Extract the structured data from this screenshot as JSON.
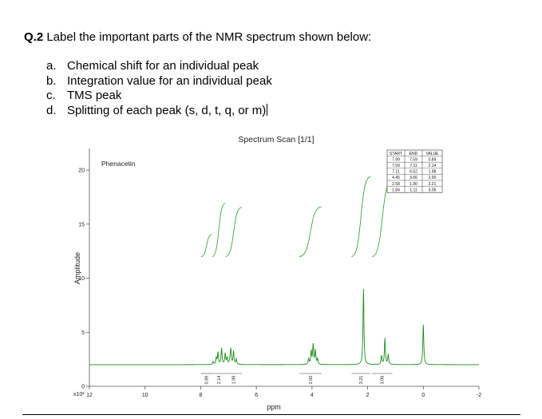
{
  "question": {
    "number": "Q.2",
    "prompt": "Label the important parts of the NMR spectrum shown below:",
    "items": [
      {
        "letter": "a.",
        "text": "Chemical shift for an individual peak"
      },
      {
        "letter": "b.",
        "text": "Integration value for an individual peak"
      },
      {
        "letter": "c.",
        "text": "TMS peak"
      },
      {
        "letter": "d.",
        "text": "Splitting of each peak (s, d, t, q, or m)"
      }
    ]
  },
  "chart_data": {
    "type": "line",
    "title": "Spectrum Scan [1/1]",
    "sample_label": "Phenacetin",
    "xlabel": "ppm",
    "ylabel": "Amplitude",
    "y_multiplier": "x10²",
    "xlim": [
      12,
      -2
    ],
    "ylim": [
      0,
      22
    ],
    "x_ticks": [
      12,
      10,
      8,
      6,
      4,
      2,
      0,
      -2
    ],
    "y_ticks": [
      0,
      5,
      10,
      15,
      20
    ],
    "grid": false,
    "peaks": [
      {
        "center": 7.25,
        "lines": [
          [
            7.55,
            0.25
          ],
          [
            7.44,
            0.6
          ],
          [
            7.38,
            1.1
          ],
          [
            7.25,
            1.5
          ],
          [
            7.12,
            1.0
          ],
          [
            7.05,
            0.6
          ],
          [
            6.95,
            0.3
          ]
        ]
      },
      {
        "center": 6.85,
        "lines": [
          [
            6.92,
            1.4
          ],
          [
            6.82,
            1.2
          ],
          [
            6.72,
            0.5
          ]
        ]
      },
      {
        "center": 3.98,
        "lines": [
          [
            4.12,
            0.5
          ],
          [
            4.03,
            1.2
          ],
          [
            3.96,
            1.8
          ],
          [
            3.88,
            1.3
          ],
          [
            3.8,
            0.5
          ]
        ]
      },
      {
        "center": 2.15,
        "lines": [
          [
            2.15,
            7.0
          ]
        ]
      },
      {
        "center": 1.38,
        "lines": [
          [
            1.5,
            0.8
          ],
          [
            1.38,
            2.4
          ],
          [
            1.26,
            0.9
          ]
        ]
      },
      {
        "center": 0.0,
        "lines": [
          [
            0.0,
            3.7
          ]
        ]
      }
    ],
    "integration_table": {
      "headers": [
        "START",
        "END",
        "VALUE"
      ],
      "rows": [
        [
          "7.99",
          "7.59",
          "0.89"
        ],
        [
          "7.59",
          "7.11",
          "2.14"
        ],
        [
          "7.11",
          "6.52",
          "1.98"
        ],
        [
          "4.45",
          "3.66",
          "2.00"
        ],
        [
          "2.58",
          "1.90",
          "3.21"
        ],
        [
          "1.84",
          "1.11",
          "3.06"
        ]
      ]
    },
    "integration_labels": [
      {
        "ppm": 7.79,
        "value": "0.89"
      },
      {
        "ppm": 7.35,
        "value": "2.14"
      },
      {
        "ppm": 6.82,
        "value": "1.98"
      },
      {
        "ppm": 4.05,
        "value": "2.00"
      },
      {
        "ppm": 2.24,
        "value": "3.21"
      },
      {
        "ppm": 1.48,
        "value": "3.06"
      }
    ]
  }
}
